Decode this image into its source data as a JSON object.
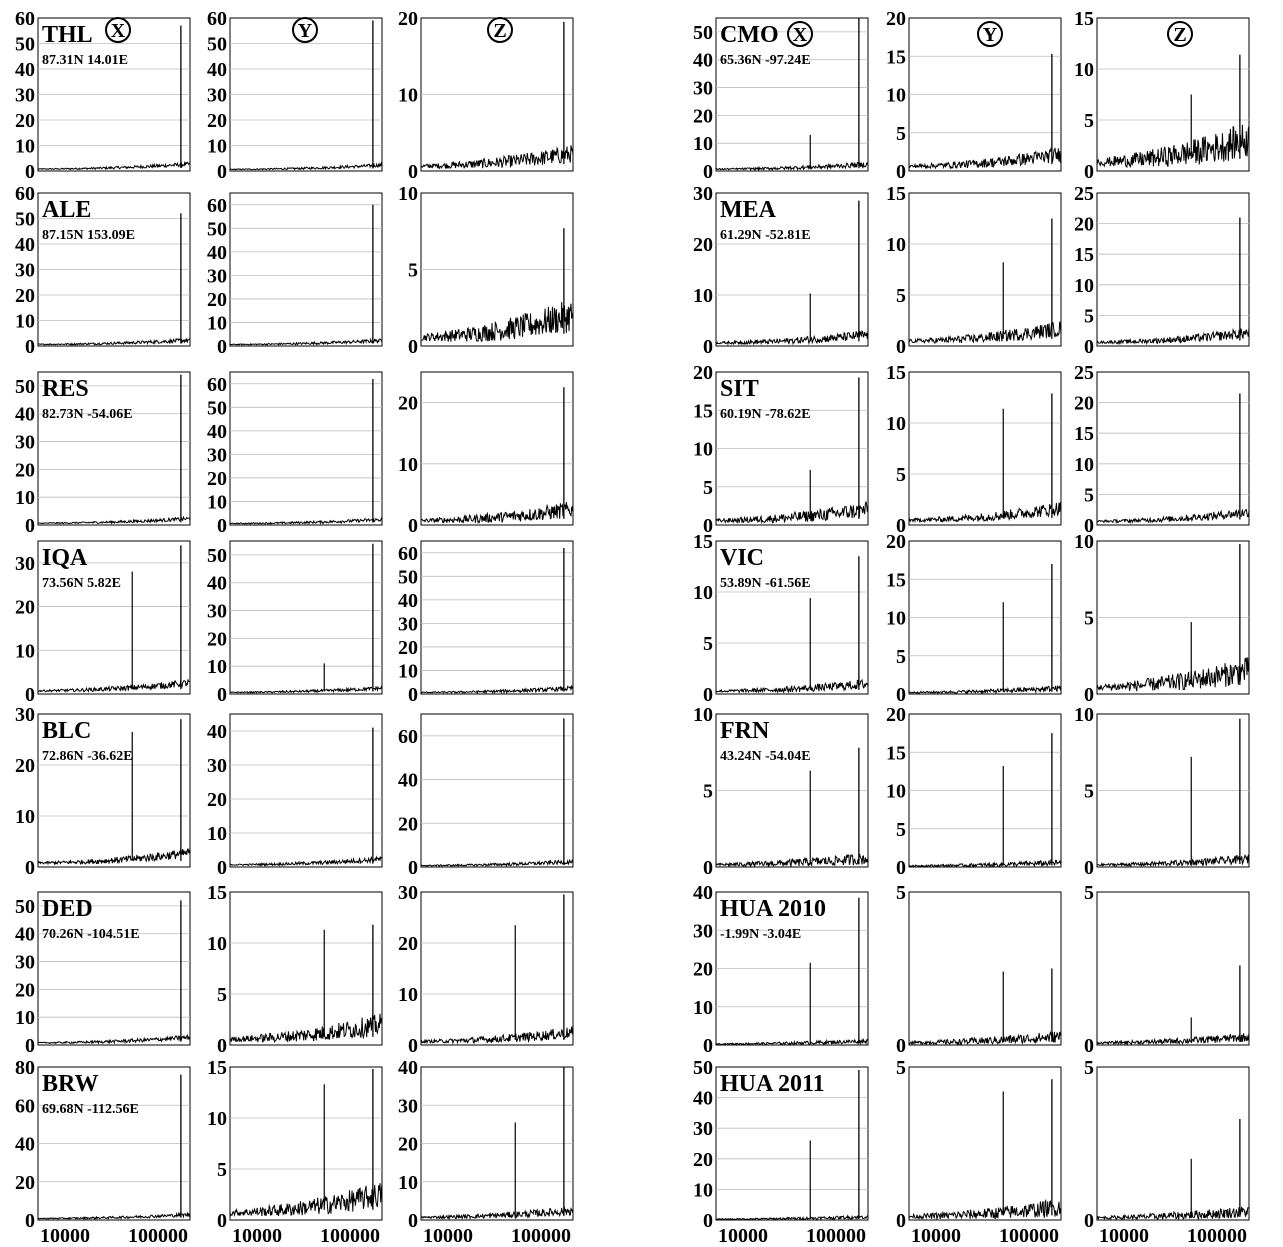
{
  "figure": {
    "background": "#ffffff",
    "ink": "#000000",
    "gridline_color": "#bbbbbb",
    "x_scale": "log",
    "x_ticks": [
      "10000",
      "100000"
    ]
  },
  "chart_data": [
    {
      "station": "THL",
      "coords": "87.31N 14.01E",
      "rows": [
        {
          "axis": "X",
          "type": "line",
          "ylim": [
            0,
            60
          ],
          "yticks": [
            "0",
            "10",
            "20",
            "30",
            "40",
            "50",
            "60"
          ],
          "peak": 57,
          "base": 1.2,
          "noise": 0.8
        },
        {
          "axis": "Y",
          "type": "line",
          "ylim": [
            0,
            60
          ],
          "yticks": [
            "0",
            "10",
            "20",
            "30",
            "40",
            "50",
            "60"
          ],
          "peak": 59,
          "base": 1.0,
          "noise": 0.7
        },
        {
          "axis": "Z",
          "type": "line",
          "ylim": [
            0,
            20
          ],
          "yticks": [
            "0",
            "10",
            "20"
          ],
          "peak": 19.5,
          "base": 0.9,
          "noise": 1.2
        }
      ]
    },
    {
      "station": "ALE",
      "coords": "87.15N 153.09E",
      "rows": [
        {
          "axis": "X",
          "type": "line",
          "ylim": [
            0,
            60
          ],
          "yticks": [
            "0",
            "10",
            "20",
            "30",
            "40",
            "50",
            "60"
          ],
          "peak": 52,
          "base": 1.0,
          "noise": 0.8
        },
        {
          "axis": "Y",
          "type": "line",
          "ylim": [
            0,
            65
          ],
          "yticks": [
            "0",
            "10",
            "20",
            "30",
            "40",
            "50",
            "60"
          ],
          "peak": 60,
          "base": 1.0,
          "noise": 0.8
        },
        {
          "axis": "Z",
          "type": "line",
          "ylim": [
            0,
            10
          ],
          "yticks": [
            "0",
            "5",
            "10"
          ],
          "peak": 7.7,
          "base": 0.8,
          "noise": 1.1
        }
      ]
    },
    {
      "station": "RES",
      "coords": "82.73N -54.06E",
      "rows": [
        {
          "axis": "X",
          "type": "line",
          "ylim": [
            0,
            55
          ],
          "yticks": [
            "0",
            "10",
            "20",
            "30",
            "40",
            "50"
          ],
          "peak": 54,
          "base": 1.0,
          "noise": 0.7
        },
        {
          "axis": "Y",
          "type": "line",
          "ylim": [
            0,
            65
          ],
          "yticks": [
            "0",
            "10",
            "20",
            "30",
            "40",
            "50",
            "60"
          ],
          "peak": 62,
          "base": 1.0,
          "noise": 0.8
        },
        {
          "axis": "Z",
          "type": "line",
          "ylim": [
            0,
            25
          ],
          "yticks": [
            "0",
            "10",
            "20"
          ],
          "peak": 22.5,
          "base": 1.0,
          "noise": 1.4
        }
      ]
    },
    {
      "station": "IQA",
      "coords": "73.56N 5.82E",
      "rows": [
        {
          "axis": "X",
          "type": "line",
          "ylim": [
            0,
            35
          ],
          "yticks": [
            "0",
            "10",
            "20",
            "30"
          ],
          "peak": 34,
          "peak2": 28,
          "base": 1.1,
          "noise": 0.9
        },
        {
          "axis": "Y",
          "type": "line",
          "ylim": [
            0,
            55
          ],
          "yticks": [
            "0",
            "10",
            "20",
            "30",
            "40",
            "50"
          ],
          "peak": 54,
          "peak2": 11,
          "base": 0.9,
          "noise": 0.7
        },
        {
          "axis": "Z",
          "type": "line",
          "ylim": [
            0,
            65
          ],
          "yticks": [
            "0",
            "10",
            "20",
            "30",
            "40",
            "50",
            "60"
          ],
          "peak": 62,
          "base": 1.0,
          "noise": 1.0
        }
      ]
    },
    {
      "station": "BLC",
      "coords": "72.86N -36.62E",
      "rows": [
        {
          "axis": "X",
          "type": "line",
          "ylim": [
            0,
            30
          ],
          "yticks": [
            "0",
            "10",
            "20",
            "30"
          ],
          "peak": 29,
          "peak2": 26.5,
          "base": 1.2,
          "noise": 1.0
        },
        {
          "axis": "Y",
          "type": "line",
          "ylim": [
            0,
            45
          ],
          "yticks": [
            "0",
            "10",
            "20",
            "30",
            "40"
          ],
          "peak": 41,
          "base": 1.0,
          "noise": 0.8
        },
        {
          "axis": "Z",
          "type": "line",
          "ylim": [
            0,
            70
          ],
          "yticks": [
            "0",
            "20",
            "40",
            "60"
          ],
          "peak": 68,
          "base": 1.0,
          "noise": 1.0
        }
      ]
    },
    {
      "station": "DED",
      "coords": "70.26N -104.51E",
      "rows": [
        {
          "axis": "X",
          "type": "line",
          "ylim": [
            0,
            55
          ],
          "yticks": [
            "0",
            "10",
            "20",
            "30",
            "40",
            "50"
          ],
          "peak": 52,
          "base": 1.2,
          "noise": 0.9
        },
        {
          "axis": "Y",
          "type": "line",
          "ylim": [
            0,
            15
          ],
          "yticks": [
            "0",
            "5",
            "10",
            "15"
          ],
          "peak": 11.8,
          "peak2": 11.3,
          "base": 0.8,
          "noise": 1.1
        },
        {
          "axis": "Z",
          "type": "line",
          "ylim": [
            0,
            30
          ],
          "yticks": [
            "0",
            "10",
            "20",
            "30"
          ],
          "peak": 29.5,
          "peak2": 23.5,
          "base": 1.0,
          "noise": 1.2
        }
      ]
    },
    {
      "station": "BRW",
      "coords": "69.68N -112.56E",
      "rows": [
        {
          "axis": "X",
          "type": "line",
          "ylim": [
            0,
            80
          ],
          "yticks": [
            "0",
            "20",
            "40",
            "60",
            "80"
          ],
          "peak": 76,
          "base": 1.2,
          "noise": 1.0
        },
        {
          "axis": "Y",
          "type": "line",
          "ylim": [
            0,
            15
          ],
          "yticks": [
            "0",
            "5",
            "10",
            "15"
          ],
          "peak": 14.8,
          "peak2": 13.3,
          "base": 1.0,
          "noise": 1.3
        },
        {
          "axis": "Z",
          "type": "line",
          "ylim": [
            0,
            40
          ],
          "yticks": [
            "0",
            "10",
            "20",
            "30",
            "40"
          ],
          "peak": 40,
          "peak2": 25.5,
          "base": 1.0,
          "noise": 1.2
        }
      ]
    },
    {
      "station": "CMO",
      "coords": "65.36N -97.24E",
      "rows": [
        {
          "axis": "X",
          "type": "line",
          "ylim": [
            0,
            55
          ],
          "yticks": [
            "0",
            "10",
            "20",
            "30",
            "40",
            "50"
          ],
          "peak": 55,
          "peak2": 13,
          "base": 1.0,
          "noise": 1.0
        },
        {
          "axis": "Y",
          "type": "line",
          "ylim": [
            0,
            20
          ],
          "yticks": [
            "0",
            "5",
            "10",
            "15",
            "20"
          ],
          "peak": 15.3,
          "base": 0.9,
          "noise": 1.0
        },
        {
          "axis": "Z",
          "type": "line",
          "ylim": [
            0,
            15
          ],
          "yticks": [
            "0",
            "5",
            "10",
            "15"
          ],
          "peak": 11.4,
          "peak2": 7.5,
          "base": 1.2,
          "noise": 1.8
        }
      ]
    },
    {
      "station": "MEA",
      "coords": "61.29N -52.81E",
      "rows": [
        {
          "axis": "X",
          "type": "line",
          "ylim": [
            0,
            30
          ],
          "yticks": [
            "0",
            "10",
            "20",
            "30"
          ],
          "peak": 28.5,
          "peak2": 10.3,
          "base": 0.9,
          "noise": 1.0
        },
        {
          "axis": "Y",
          "type": "line",
          "ylim": [
            0,
            15
          ],
          "yticks": [
            "0",
            "5",
            "10",
            "15"
          ],
          "peak": 12.5,
          "peak2": 8.2,
          "base": 0.7,
          "noise": 0.8
        },
        {
          "axis": "Z",
          "type": "line",
          "ylim": [
            0,
            25
          ],
          "yticks": [
            "0",
            "5",
            "10",
            "15",
            "20",
            "25"
          ],
          "peak": 21,
          "base": 0.9,
          "noise": 0.9
        }
      ]
    },
    {
      "station": "SIT",
      "coords": "60.19N -78.62E",
      "rows": [
        {
          "axis": "X",
          "type": "line",
          "ylim": [
            0,
            20
          ],
          "yticks": [
            "0",
            "5",
            "10",
            "15",
            "20"
          ],
          "peak": 19.3,
          "peak2": 7.2,
          "base": 0.8,
          "noise": 1.1
        },
        {
          "axis": "Y",
          "type": "line",
          "ylim": [
            0,
            15
          ],
          "yticks": [
            "0",
            "5",
            "10",
            "15"
          ],
          "peak": 12.9,
          "peak2": 11.4,
          "base": 0.7,
          "noise": 0.7
        },
        {
          "axis": "Z",
          "type": "line",
          "ylim": [
            0,
            25
          ],
          "yticks": [
            "0",
            "5",
            "10",
            "15",
            "20",
            "25"
          ],
          "peak": 21.5,
          "base": 0.9,
          "noise": 0.8
        }
      ]
    },
    {
      "station": "VIC",
      "coords": "53.89N -61.56E",
      "rows": [
        {
          "axis": "X",
          "type": "line",
          "ylim": [
            0,
            15
          ],
          "yticks": [
            "0",
            "5",
            "10",
            "15"
          ],
          "peak": 13.5,
          "peak2": 9.4,
          "base": 0.4,
          "noise": 0.5
        },
        {
          "axis": "Y",
          "type": "line",
          "ylim": [
            0,
            20
          ],
          "yticks": [
            "0",
            "5",
            "10",
            "15",
            "20"
          ],
          "peak": 17,
          "peak2": 12,
          "base": 0.3,
          "noise": 0.4
        },
        {
          "axis": "Z",
          "type": "line",
          "ylim": [
            0,
            10
          ],
          "yticks": [
            "0",
            "5",
            "10"
          ],
          "peak": 9.8,
          "peak2": 4.7,
          "base": 0.6,
          "noise": 0.9
        }
      ]
    },
    {
      "station": "FRN",
      "coords": "43.24N -54.04E",
      "rows": [
        {
          "axis": "X",
          "type": "line",
          "ylim": [
            0,
            10
          ],
          "yticks": [
            "0",
            "5",
            "10"
          ],
          "peak": 7.8,
          "peak2": 6.3,
          "base": 0.2,
          "noise": 0.4
        },
        {
          "axis": "Y",
          "type": "line",
          "ylim": [
            0,
            20
          ],
          "yticks": [
            "0",
            "5",
            "10",
            "15",
            "20"
          ],
          "peak": 17.5,
          "peak2": 13.2,
          "base": 0.2,
          "noise": 0.4
        },
        {
          "axis": "Z",
          "type": "line",
          "ylim": [
            0,
            10
          ],
          "yticks": [
            "0",
            "5",
            "10"
          ],
          "peak": 9.7,
          "peak2": 7.2,
          "base": 0.2,
          "noise": 0.3
        }
      ]
    },
    {
      "station": "HUA 2010",
      "coords": "-1.99N -3.04E",
      "rows": [
        {
          "axis": "X",
          "type": "line",
          "ylim": [
            0,
            40
          ],
          "yticks": [
            "0",
            "10",
            "20",
            "30",
            "40"
          ],
          "peak": 38.5,
          "peak2": 21.5,
          "base": 0.4,
          "noise": 0.6
        },
        {
          "axis": "Y",
          "type": "line",
          "ylim": [
            0,
            5
          ],
          "yticks": [
            "0",
            "5"
          ],
          "peak": 2.5,
          "peak2": 2.4,
          "base": 0.1,
          "noise": 0.2
        },
        {
          "axis": "Z",
          "type": "line",
          "ylim": [
            0,
            5
          ],
          "yticks": [
            "0",
            "5"
          ],
          "peak": 2.6,
          "peak2": 0.9,
          "base": 0.1,
          "noise": 0.15
        }
      ]
    },
    {
      "station": "HUA 2011",
      "coords": "",
      "rows": [
        {
          "axis": "X",
          "type": "line",
          "ylim": [
            0,
            50
          ],
          "yticks": [
            "0",
            "10",
            "20",
            "30",
            "40",
            "50"
          ],
          "peak": 49,
          "peak2": 26,
          "base": 0.4,
          "noise": 0.6
        },
        {
          "axis": "Y",
          "type": "line",
          "ylim": [
            0,
            5
          ],
          "yticks": [
            "0",
            "5"
          ],
          "peak": 4.6,
          "peak2": 4.2,
          "base": 0.15,
          "noise": 0.3
        },
        {
          "axis": "Z",
          "type": "line",
          "ylim": [
            0,
            5
          ],
          "yticks": [
            "0",
            "5"
          ],
          "peak": 3.3,
          "peak2": 2.0,
          "base": 0.1,
          "noise": 0.2
        }
      ]
    }
  ],
  "column_headers": [
    "X",
    "Y",
    "Z",
    "X",
    "Y",
    "Z"
  ]
}
